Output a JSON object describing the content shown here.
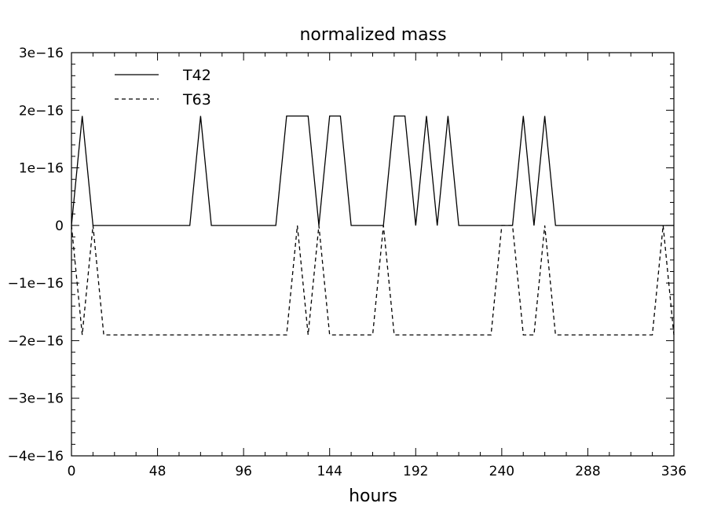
{
  "chart_data": {
    "type": "line",
    "title": "normalized mass",
    "xlabel": "hours",
    "ylabel": "",
    "xlim": [
      0,
      336
    ],
    "ylim": [
      -4e-16,
      3e-16
    ],
    "x_ticks": [
      0,
      48,
      96,
      144,
      192,
      240,
      288,
      336
    ],
    "x_tick_labels": [
      "0",
      "48",
      "96",
      "144",
      "192",
      "240",
      "288",
      "336"
    ],
    "y_ticks": [
      3e-16,
      2e-16,
      1e-16,
      0,
      -1e-16,
      -2e-16,
      -3e-16,
      -4e-16
    ],
    "y_tick_labels": [
      "3e−16",
      "2e−16",
      "1e−16",
      "0",
      "−1e−16",
      "−2e−16",
      "−3e−16",
      "−4e−16"
    ],
    "grid": false,
    "legend_position": "top-left",
    "series": [
      {
        "name": "T42",
        "style": "solid",
        "color": "#000000",
        "points": [
          [
            0,
            0
          ],
          [
            6,
            1.9e-16
          ],
          [
            12,
            0
          ],
          [
            66,
            0
          ],
          [
            72,
            1.9e-16
          ],
          [
            78,
            0
          ],
          [
            114,
            0
          ],
          [
            120,
            1.9e-16
          ],
          [
            132,
            1.9e-16
          ],
          [
            138,
            0
          ],
          [
            144,
            1.9e-16
          ],
          [
            150,
            1.9e-16
          ],
          [
            156,
            0
          ],
          [
            174,
            0
          ],
          [
            180,
            1.9e-16
          ],
          [
            186,
            1.9e-16
          ],
          [
            192,
            0
          ],
          [
            198,
            1.9e-16
          ],
          [
            204,
            0
          ],
          [
            210,
            1.9e-16
          ],
          [
            216,
            0
          ],
          [
            246,
            0
          ],
          [
            252,
            1.9e-16
          ],
          [
            258,
            0
          ],
          [
            264,
            1.9e-16
          ],
          [
            270,
            0
          ],
          [
            336,
            0
          ]
        ]
      },
      {
        "name": "T63",
        "style": "dashed",
        "color": "#000000",
        "points": [
          [
            0,
            0
          ],
          [
            6,
            -1.9e-16
          ],
          [
            12,
            0
          ],
          [
            18,
            -1.9e-16
          ],
          [
            120,
            -1.9e-16
          ],
          [
            126,
            0
          ],
          [
            132,
            -1.9e-16
          ],
          [
            138,
            0
          ],
          [
            144,
            -1.9e-16
          ],
          [
            168,
            -1.9e-16
          ],
          [
            174,
            0
          ],
          [
            180,
            -1.9e-16
          ],
          [
            234,
            -1.9e-16
          ],
          [
            240,
            0
          ],
          [
            246,
            0
          ],
          [
            252,
            -1.9e-16
          ],
          [
            258,
            -1.9e-16
          ],
          [
            264,
            0
          ],
          [
            270,
            -1.9e-16
          ],
          [
            324,
            -1.9e-16
          ],
          [
            330,
            0
          ],
          [
            336,
            -1.9e-16
          ]
        ]
      }
    ]
  }
}
